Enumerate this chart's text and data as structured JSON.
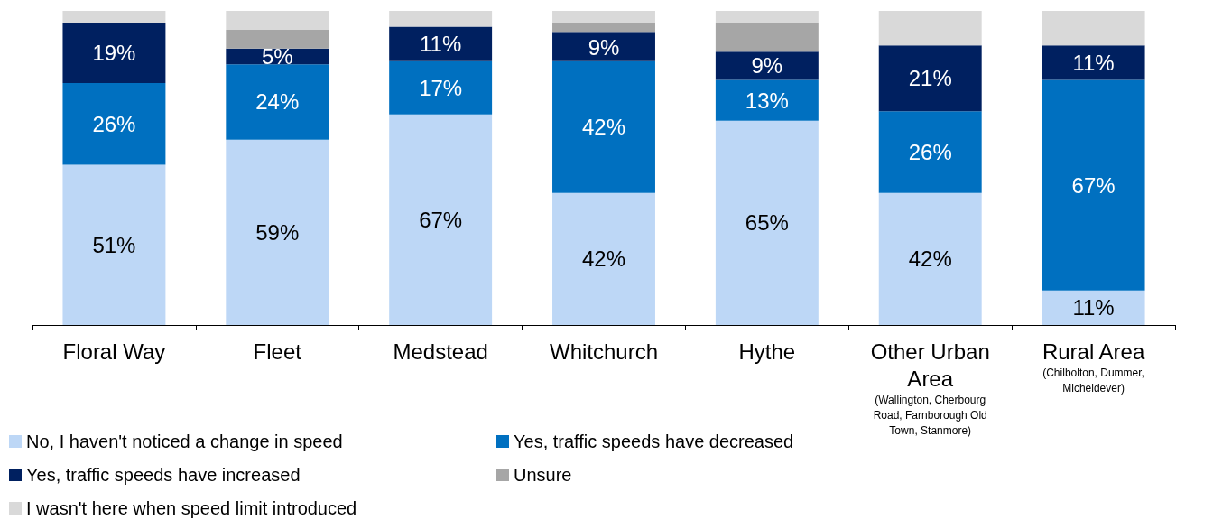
{
  "chart_data": {
    "type": "bar",
    "stacked": true,
    "legend": "bottom",
    "categories": [
      "Floral Way",
      "Fleet",
      "Medstead",
      "Whitchurch",
      "Hythe",
      "Other Urban Area (Wallington, Cherbourg Road, Farnborough Old Town, Stanmore)",
      "Rural Area (Chilbolton, Dummer, Micheldever)"
    ],
    "series": [
      {
        "name": "No, I haven't noticed a change in speed",
        "color": "#bdd7f6",
        "values": [
          51,
          59,
          67,
          42,
          65,
          42,
          11
        ],
        "value_labels": [
          "51%",
          "59%",
          "67%",
          "42%",
          "65%",
          "42%",
          "11%"
        ]
      },
      {
        "name": "Yes, traffic speeds have decreased",
        "color": "#0070c0",
        "values": [
          26,
          24,
          17,
          42,
          13,
          26,
          67
        ],
        "value_labels": [
          "26%",
          "24%",
          "17%",
          "42%",
          "13%",
          "26%",
          "67%"
        ]
      },
      {
        "name": "Yes, traffic speeds have increased",
        "color": "#002060",
        "values": [
          19,
          5,
          11,
          9,
          9,
          21,
          11
        ],
        "value_labels": [
          "19%",
          "5%",
          "11%",
          "9%",
          "9%",
          "21%",
          "11%"
        ]
      },
      {
        "name": "Unsure",
        "color": "#a6a6a6",
        "values": [
          0,
          6,
          0,
          3,
          9,
          0,
          0
        ]
      },
      {
        "name": "I wasn't here when speed limit introduced",
        "color": "#d9d9d9",
        "values": [
          4,
          6,
          5,
          4,
          4,
          11,
          11
        ]
      }
    ]
  }
}
